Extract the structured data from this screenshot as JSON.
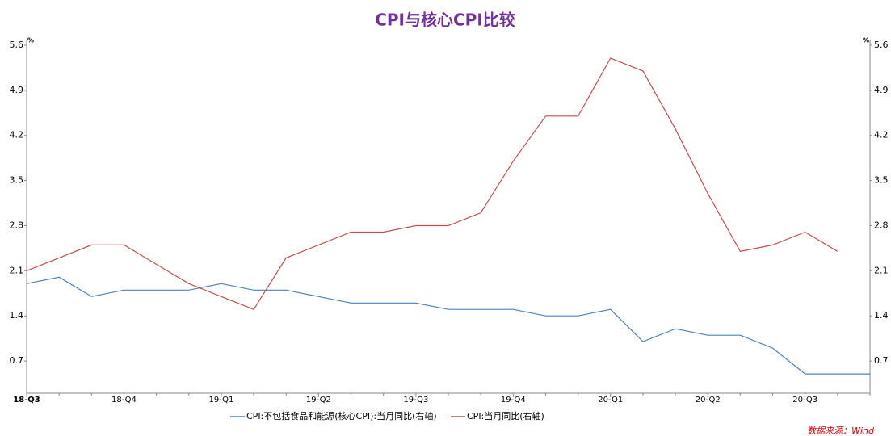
{
  "chart_data": {
    "type": "line",
    "title": "CPI与核心CPI比较",
    "y_unit": "%",
    "y2_unit": "%",
    "categories": [
      "18-Q3",
      null,
      null,
      "18-Q4",
      null,
      null,
      "19-Q1",
      null,
      null,
      "19-Q2",
      null,
      null,
      "19-Q3",
      null,
      null,
      "19-Q4",
      null,
      null,
      "20-Q1",
      null,
      null,
      "20-Q2",
      null,
      null,
      "20-Q3",
      null,
      null
    ],
    "series": [
      {
        "name": "CPI:不包括食品和能源(核心CPI):当月同比(右轴)",
        "color": "#4f81bd",
        "axis": "y2",
        "values": [
          1.9,
          2.0,
          1.7,
          1.8,
          1.8,
          1.8,
          1.9,
          1.8,
          1.8,
          1.7,
          1.6,
          1.6,
          1.6,
          1.5,
          1.5,
          1.5,
          1.4,
          1.4,
          1.5,
          1.0,
          1.2,
          1.1,
          1.1,
          0.9,
          0.5,
          0.5,
          0.5
        ]
      },
      {
        "name": "CPI:当月同比(右轴)",
        "color": "#c0504d",
        "axis": "y2",
        "values": [
          2.1,
          2.3,
          2.5,
          2.5,
          2.2,
          1.9,
          1.7,
          1.5,
          2.3,
          2.5,
          2.7,
          2.7,
          2.8,
          2.8,
          3.0,
          3.8,
          4.5,
          4.5,
          5.4,
          5.2,
          4.3,
          3.3,
          2.4,
          2.5,
          2.7,
          2.4,
          null
        ]
      }
    ],
    "ylim": [
      0.2,
      5.6
    ],
    "yticks": [
      0.7,
      1.4,
      2.1,
      2.8,
      3.5,
      4.2,
      4.9,
      5.6
    ],
    "y2lim": [
      0.2,
      5.6
    ],
    "y2ticks": [
      0.7,
      1.4,
      2.1,
      2.8,
      3.5,
      4.2,
      4.9,
      5.6
    ],
    "legend": "bottom",
    "source": "数据来源：Wind"
  }
}
